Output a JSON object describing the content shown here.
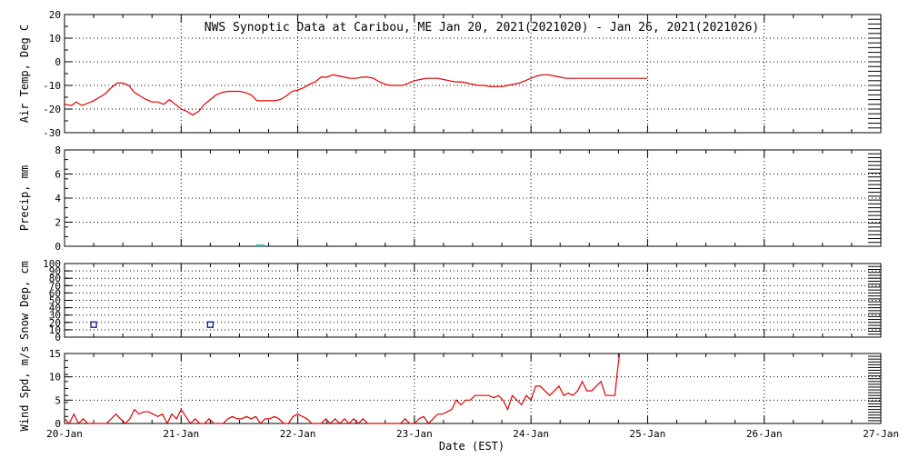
{
  "title": "NWS Synoptic Data at Caribou, ME   Jan 20, 2021(2021020) - Jan 26, 2021(2021026)",
  "xlabel": "Date (EST)",
  "colors": {
    "line": "#e00000",
    "precip": "#20c0c0",
    "snow": "#1a2a90",
    "grid": "#000000"
  },
  "chart_data": [
    {
      "type": "line",
      "ylabel": "Air Temp, Deg C",
      "ylim": [
        -30,
        20
      ],
      "yticks": [
        20,
        10,
        0,
        -10,
        -20,
        -30
      ],
      "ytick_labels": [
        "20",
        "10",
        "0",
        "-10",
        "-20",
        "-30"
      ],
      "xlim": [
        0,
        7
      ],
      "x": [
        0.0,
        0.06,
        0.1,
        0.15,
        0.2,
        0.25,
        0.3,
        0.35,
        0.4,
        0.45,
        0.5,
        0.55,
        0.6,
        0.65,
        0.7,
        0.75,
        0.8,
        0.85,
        0.9,
        0.95,
        1.0,
        1.05,
        1.1,
        1.15,
        1.2,
        1.25,
        1.3,
        1.35,
        1.4,
        1.45,
        1.5,
        1.55,
        1.6,
        1.65,
        1.7,
        1.75,
        1.8,
        1.85,
        1.9,
        1.95,
        2.0,
        2.05,
        2.1,
        2.15,
        2.2,
        2.25,
        2.3,
        2.35,
        2.4,
        2.45,
        2.5,
        2.55,
        2.6,
        2.65,
        2.7,
        2.75,
        2.8,
        2.85,
        2.9,
        2.95,
        3.0,
        3.05,
        3.1,
        3.15,
        3.2,
        3.25,
        3.3,
        3.35,
        3.4,
        3.45,
        3.5,
        3.55,
        3.6,
        3.65,
        3.7,
        3.75,
        3.8,
        3.85,
        3.9,
        3.95,
        4.0,
        4.05,
        4.1,
        4.15,
        4.2,
        4.25,
        4.3,
        4.35,
        4.4,
        4.45,
        4.5,
        4.55,
        4.6,
        4.65,
        4.7,
        4.75,
        4.8,
        4.85,
        4.9,
        4.95,
        5.0
      ],
      "series": [
        {
          "values": [
            -18,
            -18.5,
            -17,
            -18.5,
            -17.5,
            -16.5,
            -15,
            -13.5,
            -11,
            -9,
            -9,
            -10,
            -13,
            -14.5,
            -16,
            -17,
            -17,
            -18,
            -16,
            -18,
            -20,
            -21,
            -22.5,
            -21,
            -18,
            -16,
            -14,
            -13,
            -12.5,
            -12.5,
            -12.5,
            -13,
            -14,
            -16.5,
            -16.5,
            -16.5,
            -16.5,
            -16,
            -14.5,
            -12.5,
            -12,
            -11,
            -9.5,
            -8.5,
            -6.5,
            -6.5,
            -5.5,
            -6,
            -6.5,
            -7,
            -7,
            -6.5,
            -6.5,
            -7,
            -8.5,
            -9.5,
            -10,
            -10,
            -10,
            -9,
            -8,
            -7.5,
            -7,
            -7,
            -7,
            -7.5,
            -8,
            -8.5,
            -8.5,
            -9,
            -9.5,
            -10,
            -10,
            -10.5,
            -10.5,
            -10.5,
            -10,
            -9.5,
            -9,
            -8,
            -7,
            -6,
            -5.5,
            -5.5,
            -6,
            -6.5,
            -7,
            -7,
            -7,
            -7,
            -7,
            -7,
            -7,
            -7,
            -7,
            -7,
            -7,
            -7,
            -7,
            -7,
            -7
          ]
        }
      ]
    },
    {
      "type": "bar",
      "ylabel": "Precip, mm",
      "ylim": [
        0,
        8
      ],
      "yticks": [
        8,
        6,
        4,
        2,
        0
      ],
      "ytick_labels": [
        "8",
        "6",
        "4",
        "2",
        "0"
      ],
      "xlim": [
        0,
        7
      ],
      "x": [
        1.66,
        1.68,
        1.7
      ],
      "series": [
        {
          "values": [
            0.1,
            0.1,
            0.1
          ]
        }
      ]
    },
    {
      "type": "scatter",
      "ylabel": "Snow Dep, cm",
      "ylim": [
        0,
        100
      ],
      "yticks": [
        100,
        90,
        80,
        70,
        60,
        50,
        40,
        30,
        20,
        10,
        0
      ],
      "ytick_labels": [
        "100",
        "90",
        "80",
        "70",
        "60",
        "50",
        "40",
        "30",
        "20",
        "10",
        "0"
      ],
      "xlim": [
        0,
        7
      ],
      "x": [
        0.25,
        1.25
      ],
      "series": [
        {
          "values": [
            17,
            17
          ]
        }
      ]
    },
    {
      "type": "line",
      "ylabel": "Wind Spd, m/s",
      "ylim": [
        0,
        15
      ],
      "yticks": [
        15,
        10,
        5,
        0
      ],
      "ytick_labels": [
        "15",
        "10",
        "5",
        "0"
      ],
      "xlim": [
        0,
        7
      ],
      "xticks": [
        0,
        1,
        2,
        3,
        4,
        5,
        6,
        7
      ],
      "xtick_labels": [
        "20-Jan",
        "21-Jan",
        "22-Jan",
        "23-Jan",
        "24-Jan",
        "25-Jan",
        "26-Jan",
        "27-Jan"
      ],
      "x": [
        0.0,
        0.04,
        0.08,
        0.12,
        0.16,
        0.2,
        0.24,
        0.28,
        0.32,
        0.36,
        0.4,
        0.44,
        0.48,
        0.52,
        0.56,
        0.6,
        0.64,
        0.68,
        0.72,
        0.76,
        0.8,
        0.84,
        0.88,
        0.92,
        0.96,
        1.0,
        1.04,
        1.08,
        1.12,
        1.16,
        1.2,
        1.24,
        1.28,
        1.32,
        1.36,
        1.4,
        1.44,
        1.48,
        1.52,
        1.56,
        1.6,
        1.64,
        1.68,
        1.72,
        1.76,
        1.8,
        1.84,
        1.88,
        1.92,
        1.96,
        2.0,
        2.04,
        2.08,
        2.12,
        2.16,
        2.2,
        2.24,
        2.28,
        2.32,
        2.36,
        2.4,
        2.44,
        2.48,
        2.52,
        2.56,
        2.6,
        2.64,
        2.68,
        2.72,
        2.76,
        2.8,
        2.84,
        2.88,
        2.92,
        2.96,
        3.0,
        3.04,
        3.08,
        3.12,
        3.16,
        3.2,
        3.24,
        3.28,
        3.32,
        3.36,
        3.4,
        3.44,
        3.48,
        3.52,
        3.56,
        3.6,
        3.64,
        3.68,
        3.72,
        3.76,
        3.8,
        3.84,
        3.88,
        3.92,
        3.96,
        4.0,
        4.04,
        4.08,
        4.12,
        4.16,
        4.2,
        4.24,
        4.28,
        4.32,
        4.36,
        4.4,
        4.44,
        4.48,
        4.52,
        4.56,
        4.6,
        4.64,
        4.68,
        4.72,
        4.74,
        4.76
      ],
      "series": [
        {
          "values": [
            1,
            0,
            2,
            0,
            1,
            0,
            0,
            0,
            0,
            0,
            1,
            2,
            1,
            0,
            1,
            3,
            2,
            2.5,
            2.5,
            2,
            1.5,
            2,
            0,
            2,
            1,
            3,
            1.5,
            0,
            1,
            0,
            0,
            1,
            0,
            0,
            0,
            1,
            1.5,
            1,
            1,
            1.5,
            1,
            1.5,
            0,
            1,
            1,
            1.5,
            1,
            0,
            0,
            1.5,
            2,
            1.5,
            1,
            0,
            0,
            0,
            1,
            0,
            1,
            0,
            1,
            0,
            1,
            0,
            1,
            0,
            0,
            0,
            0,
            0,
            0,
            0,
            0,
            1,
            0,
            0,
            1,
            1.5,
            0,
            1,
            2,
            2,
            2.5,
            3,
            5,
            4,
            5,
            5,
            6,
            6,
            6,
            6,
            5.5,
            6,
            5,
            3,
            6,
            5,
            4,
            6,
            5,
            8,
            8,
            7,
            6,
            7,
            8,
            6,
            6.5,
            6,
            7,
            9,
            7,
            7,
            8,
            9,
            6,
            6,
            6,
            11,
            15
          ]
        }
      ]
    }
  ]
}
